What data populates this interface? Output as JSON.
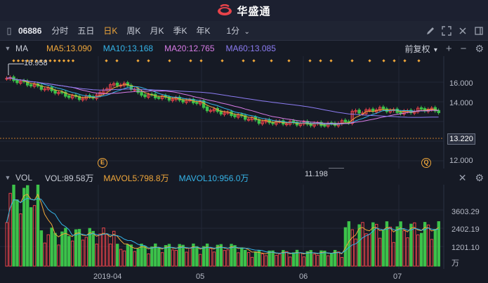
{
  "app": {
    "title": "华盛通"
  },
  "toolbar": {
    "code": "06886",
    "periods": [
      "分时",
      "五日",
      "日K",
      "周K",
      "月K",
      "季K",
      "年K"
    ],
    "active_period": "日K",
    "interval": "1分",
    "interval_caret": "⌄"
  },
  "price_panel": {
    "indicator": "MA",
    "ma5": "MA5:13.090",
    "ma10": "MA10:13.168",
    "ma20": "MA20:12.765",
    "ma60": "MA60:13.085",
    "adjust": "前复权",
    "adjust_caret": "▾",
    "y_labels": [
      "16.000",
      "14.000",
      "13.220",
      "12.000"
    ],
    "last_price": "13.220",
    "high_label": "16.958",
    "low_label": "11.198",
    "badge_e": "E",
    "badge_q": "Q"
  },
  "volume_panel": {
    "indicator": "VOL",
    "vol": "VOL:89.58万",
    "mavol5": "MAVOL5:798.8万",
    "mavol10": "MAVOL10:956.0万",
    "y_labels": [
      "3603.29",
      "2402.19",
      "1201.10",
      "万"
    ]
  },
  "x_labels": [
    "2019-04",
    "05",
    "06",
    "07"
  ],
  "colors": {
    "up": "#e8434a",
    "down": "#3cc24a",
    "ma5": "#f0a73a",
    "ma10": "#35b4e8",
    "ma20": "#d77be6",
    "ma60": "#8c7cf2",
    "background": "#161a25",
    "accent": "#f0a73a"
  }
}
